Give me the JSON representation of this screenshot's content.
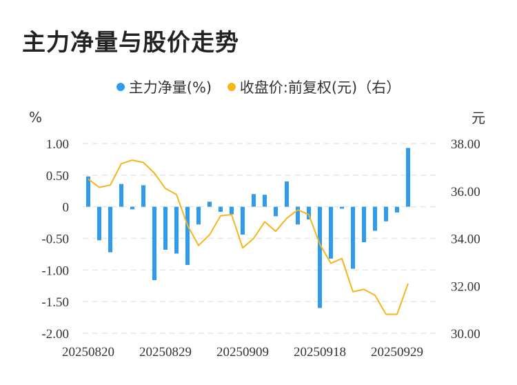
{
  "title": "主力净量与股价走势",
  "legend": {
    "bar_label": "主力净量(%)",
    "line_label": "收盘价:前复权(元)（右）"
  },
  "colors": {
    "bar": "#2d9cf0",
    "line": "#f5b51b",
    "grid": "#e6e6e6"
  },
  "chart_data": {
    "type": "bar+line",
    "x_tick_labels": [
      "20250820",
      "20250829",
      "20250909",
      "20250918",
      "20250929"
    ],
    "x_tick_indices": [
      0,
      7,
      14,
      21,
      28
    ],
    "left_axis": {
      "unit": "%",
      "ylim": [
        -2.0,
        1.0
      ],
      "ticks": [
        "1.00",
        "0.50",
        "0",
        "-0.50",
        "-1.00",
        "-1.50",
        "-2.00"
      ],
      "tick_values": [
        1.0,
        0.5,
        0,
        -0.5,
        -1.0,
        -1.5,
        -2.0
      ]
    },
    "right_axis": {
      "unit": "元",
      "ylim": [
        30.0,
        38.0
      ],
      "ticks": [
        "38.00",
        "36.00",
        "34.00",
        "32.00",
        "30.00"
      ],
      "tick_values": [
        38,
        36,
        34,
        32,
        30
      ]
    },
    "series": [
      {
        "name": "主力净量(%)",
        "kind": "bar",
        "axis": "left",
        "values": [
          0.48,
          -0.53,
          -0.72,
          0.36,
          -0.04,
          0.34,
          -1.16,
          -0.68,
          -0.74,
          -0.92,
          -0.28,
          0.08,
          -0.08,
          -0.12,
          -0.44,
          0.2,
          0.19,
          -0.15,
          0.4,
          -0.28,
          -0.2,
          -1.6,
          -0.82,
          -0.03,
          -0.98,
          -0.56,
          -0.38,
          -0.23,
          -0.09,
          0.93
        ]
      },
      {
        "name": "收盘价:前复权(元)（右）",
        "kind": "line",
        "axis": "right",
        "values": [
          36.5,
          36.15,
          36.25,
          37.15,
          37.3,
          37.2,
          36.75,
          36.1,
          35.85,
          34.55,
          33.7,
          34.15,
          34.95,
          35.0,
          33.6,
          34.0,
          34.7,
          34.3,
          34.85,
          35.2,
          35.0,
          33.75,
          32.95,
          33.15,
          31.75,
          31.85,
          31.6,
          30.8,
          30.8,
          32.1
        ]
      }
    ]
  }
}
